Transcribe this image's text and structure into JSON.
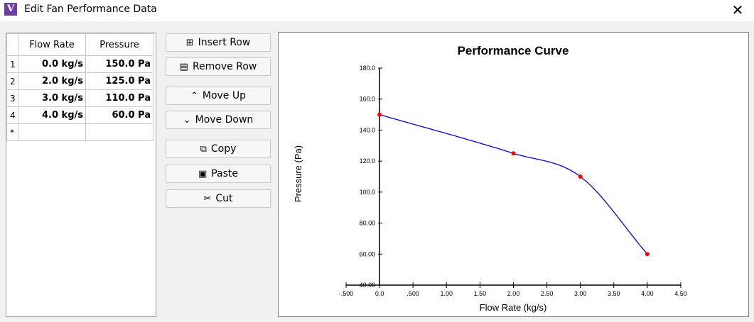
{
  "window": {
    "title": "Edit Fan Performance Data",
    "icon_letter": "V",
    "close_glyph": "✕"
  },
  "grid": {
    "headers": [
      "Flow Rate",
      "Pressure"
    ],
    "rows": [
      {
        "num": "1",
        "flow": "0.0 kg/s",
        "pressure": "150.0 Pa"
      },
      {
        "num": "2",
        "flow": "2.0 kg/s",
        "pressure": "125.0 Pa"
      },
      {
        "num": "3",
        "flow": "3.0 kg/s",
        "pressure": "110.0 Pa"
      },
      {
        "num": "4",
        "flow": "4.0 kg/s",
        "pressure": "60.0 Pa"
      }
    ],
    "new_row_marker": "*"
  },
  "buttons": {
    "insert_row": "Insert Row",
    "remove_row": "Remove Row",
    "move_up": "Move Up",
    "move_down": "Move Down",
    "copy": "Copy",
    "paste": "Paste",
    "cut": "Cut"
  },
  "icons": {
    "insert_row": "insert-row-icon",
    "remove_row": "remove-row-icon",
    "move_up": "chevron-up-icon",
    "move_down": "chevron-down-icon",
    "copy": "copy-icon",
    "paste": "paste-icon",
    "cut": "scissors-icon"
  },
  "chart_data": {
    "type": "line",
    "title": "Performance Curve",
    "xlabel": "Flow Rate (kg/s)",
    "ylabel": "Pressure (Pa)",
    "xlim": [
      -0.5,
      4.5
    ],
    "ylim": [
      40,
      180
    ],
    "x_ticks": [
      "-.500",
      "0.0",
      ".500",
      "1.00",
      "1.50",
      "2.00",
      "2.50",
      "3.00",
      "3.50",
      "4.00",
      "4.50"
    ],
    "y_ticks": [
      "40.00",
      "60.00",
      "80.00",
      "100.0",
      "120.0",
      "140.0",
      "160.0",
      "180.0"
    ],
    "points": [
      {
        "x": 0.0,
        "y": 150.0
      },
      {
        "x": 2.0,
        "y": 125.0
      },
      {
        "x": 3.0,
        "y": 110.0
      },
      {
        "x": 4.0,
        "y": 60.0
      }
    ],
    "line_color": "#0000e0",
    "point_color": "#ff0000",
    "grid": false
  }
}
